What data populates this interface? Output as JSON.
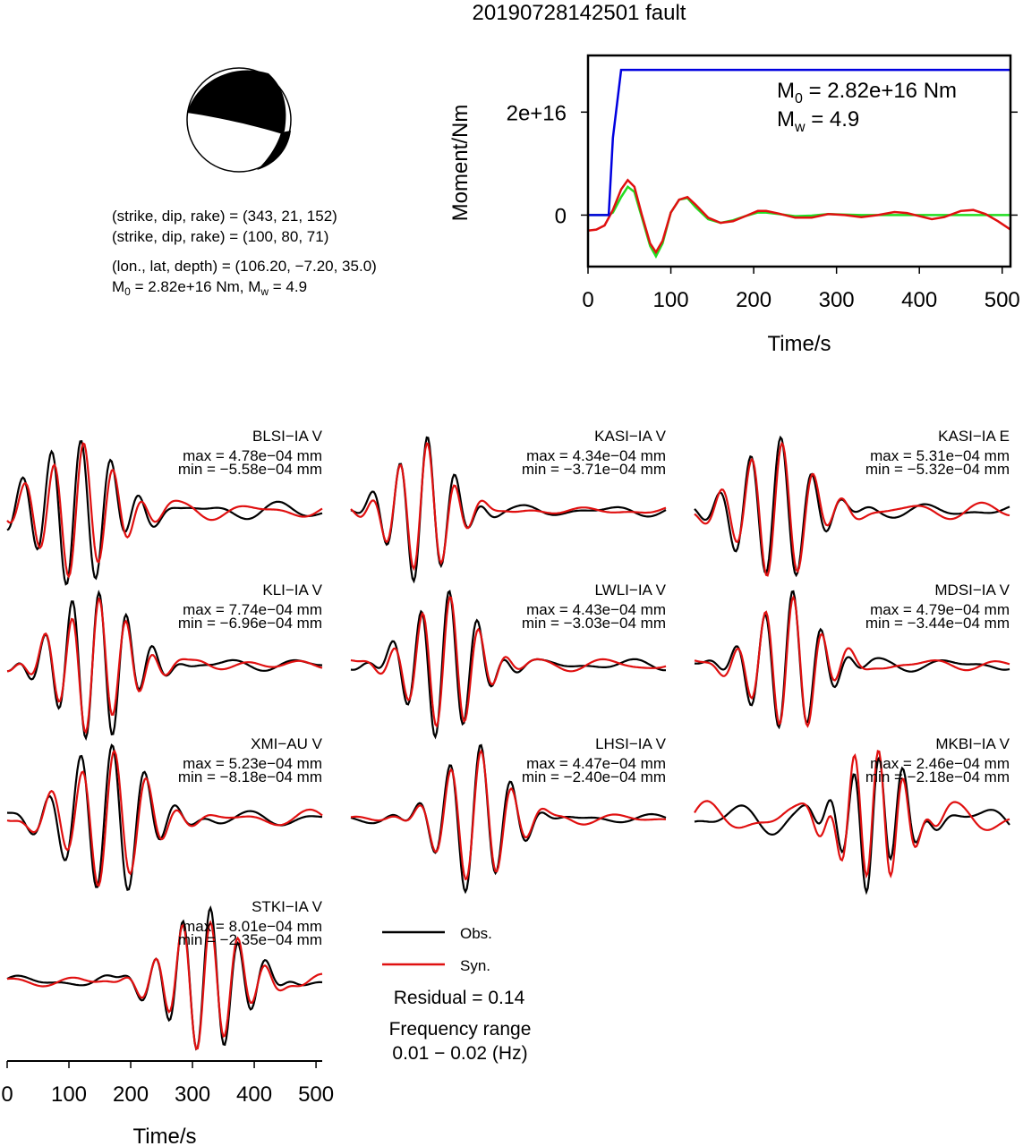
{
  "title": "20190728142501 fault",
  "mechanism": {
    "info_lines": [
      "(strike, dip, rake) = (343, 21, 152)",
      "(strike, dip, rake) = (100, 80, 71)",
      "(lon., lat, depth) = (106.20, −7.20, 35.0)"
    ],
    "moment_line": {
      "m0_prefix": "M",
      "m0_sub": "0",
      "m0_value": " = 2.82e+16 Nm, M",
      "mw_sub": "w",
      "mw_value": " = 4.9"
    }
  },
  "colors": {
    "obs": "#000000",
    "syn": "#e01010",
    "moment": "#0000e0",
    "stf": "#22dd22",
    "ball_fill": "#000000"
  },
  "chart_data": [
    {
      "type": "line",
      "id": "moment-rate",
      "xlabel": "Time/s",
      "ylabel": "Moment/Nm",
      "xlim": [
        0,
        510
      ],
      "ylim": [
        -1e+16,
        3.1e+16
      ],
      "x_ticks": [
        "0",
        "100",
        "200",
        "300",
        "400",
        "500"
      ],
      "y_ticks": [
        "0",
        "2e+16"
      ],
      "annotation": {
        "m0_text": " = 2.82e+16 Nm",
        "mw_text": " = 4.9",
        "m_symbol": "M",
        "sub0": "0",
        "subw": "w"
      },
      "series": [
        {
          "color": "blue",
          "x": [
            0,
            25,
            30,
            40,
            510
          ],
          "y": [
            0,
            0,
            1.5e+16,
            2.82e+16,
            2.82e+16
          ]
        },
        {
          "color": "red",
          "x": [
            0,
            10,
            20,
            30,
            40,
            48,
            56,
            65,
            75,
            82,
            90,
            100,
            110,
            120,
            130,
            145,
            160,
            175,
            190,
            205,
            215,
            230,
            250,
            270,
            290,
            310,
            330,
            350,
            370,
            385,
            400,
            415,
            430,
            450,
            465,
            480,
            495,
            510
          ],
          "y": [
            -3000000000000000.0,
            -2800000000000000.0,
            -2000000000000000.0,
            1000000000000000.0,
            5000000000000000.0,
            6800000000000000.0,
            5500000000000000.0,
            0.0,
            -5500000000000000.0,
            -7200000000000000.0,
            -5000000000000000.0,
            500000000000000.0,
            3000000000000000.0,
            3500000000000000.0,
            2000000000000000.0,
            -500000000000000.0,
            -1500000000000000.0,
            -1200000000000000.0,
            -200000000000000.0,
            800000000000000.0,
            800000000000000.0,
            300000000000000.0,
            -500000000000000.0,
            -500000000000000.0,
            200000000000000.0,
            0.0,
            -400000000000000.0,
            0.0,
            600000000000000.0,
            400000000000000.0,
            -200000000000000.0,
            -800000000000000.0,
            -400000000000000.0,
            800000000000000.0,
            1000000000000000.0,
            200000000000000.0,
            -1200000000000000.0,
            -2800000000000000.0
          ]
        },
        {
          "color": "green",
          "x": [
            0,
            25,
            30,
            40,
            48,
            56,
            65,
            75,
            82,
            90,
            100,
            110,
            120,
            130,
            145,
            160,
            175,
            190,
            205,
            215,
            230,
            250,
            270,
            290,
            310,
            330,
            350,
            510
          ],
          "y": [
            0,
            0,
            500000000000000.0,
            3500000000000000.0,
            5500000000000000.0,
            4500000000000000.0,
            -500000000000000.0,
            -6000000000000000.0,
            -8000000000000000.0,
            -5500000000000000.0,
            500000000000000.0,
            3000000000000000.0,
            3300000000000000.0,
            1500000000000000.0,
            -800000000000000.0,
            -1500000000000000.0,
            -1000000000000000.0,
            -200000000000000.0,
            500000000000000.0,
            500000000000000.0,
            200000000000000.0,
            -200000000000000.0,
            -100000000000000.0,
            200000000000000.0,
            100000000000000.0,
            0.0,
            0.0,
            0.0
          ]
        }
      ]
    },
    {
      "type": "line",
      "id": "waveforms",
      "xlabel": "Time/s",
      "xlim": [
        0,
        510
      ],
      "x_ticks": [
        "0",
        "100",
        "200",
        "300",
        "400",
        "500"
      ],
      "legend": {
        "obs": "Obs.",
        "syn": "Syn."
      },
      "residual": "Residual = 0.14",
      "frequency_label": "Frequency range",
      "frequency_range": "0.01 − 0.02 (Hz)",
      "stations": [
        {
          "name": "BLSI−IA V",
          "max": "max = 4.78e−04 mm",
          "min": "min = −5.58e−04 mm",
          "t0": 110,
          "period": 48,
          "amp": 0.95,
          "decay": 60,
          "noise": 0.12,
          "lag": 4,
          "synScale": 1.15
        },
        {
          "name": "KASI−IA V",
          "max": "max = 4.34e−04 mm",
          "min": "min = −3.71e−04 mm",
          "t0": 115,
          "period": 45,
          "amp": 1.0,
          "decay": 45,
          "noise": 0.08,
          "lag": 0,
          "synScale": 1.0
        },
        {
          "name": "KASI−IA E",
          "max": "max = 5.31e−04 mm",
          "min": "min = −5.32e−04 mm",
          "t0": 130,
          "period": 50,
          "amp": 1.0,
          "decay": 55,
          "noise": 0.1,
          "lag": 2,
          "synScale": 0.95
        },
        {
          "name": "KLI−IA V",
          "max": "max = 7.74e−04 mm",
          "min": "min = −6.96e−04 mm",
          "t0": 140,
          "period": 44,
          "amp": 1.0,
          "decay": 55,
          "noise": 0.08,
          "lag": 0,
          "synScale": 0.6
        },
        {
          "name": "LWLI−IA V",
          "max": "max = 4.43e−04 mm",
          "min": "min = −3.03e−04 mm",
          "t0": 150,
          "period": 46,
          "amp": 1.0,
          "decay": 50,
          "noise": 0.08,
          "lag": 2,
          "synScale": 0.95
        },
        {
          "name": "MDSI−IA V",
          "max": "max = 4.79e−04 mm",
          "min": "min = −3.44e−04 mm",
          "t0": 150,
          "period": 46,
          "amp": 1.0,
          "decay": 50,
          "noise": 0.1,
          "lag": 1,
          "synScale": 1.0
        },
        {
          "name": "XMI−AU V",
          "max": "max = 5.23e−04 mm",
          "min": "min = −8.18e−04 mm",
          "t0": 160,
          "period": 52,
          "amp": 1.0,
          "decay": 60,
          "noise": 0.1,
          "lag": 3,
          "synScale": 0.75
        },
        {
          "name": "LHSI−IA V",
          "max": "max = 4.47e−04 mm",
          "min": "min = −2.40e−04 mm",
          "t0": 200,
          "period": 50,
          "amp": 1.0,
          "decay": 50,
          "noise": 0.06,
          "lag": 1,
          "synScale": 0.9
        },
        {
          "name": "MKBI−IA V",
          "max": "max = 2.46e−04 mm",
          "min": "min = −2.18e−04 mm",
          "t0": 290,
          "period": 40,
          "amp": 1.0,
          "decay": 45,
          "noise": 0.25,
          "lag": 0,
          "synScale": 1.0
        },
        {
          "name": "STKI−IA V",
          "max": "max = 8.01e−04 mm",
          "min": "min = −2.35e−04 mm",
          "t0": 320,
          "period": 45,
          "amp": 1.0,
          "decay": 55,
          "noise": 0.1,
          "lag": 0,
          "synScale": 1.0
        }
      ]
    }
  ]
}
